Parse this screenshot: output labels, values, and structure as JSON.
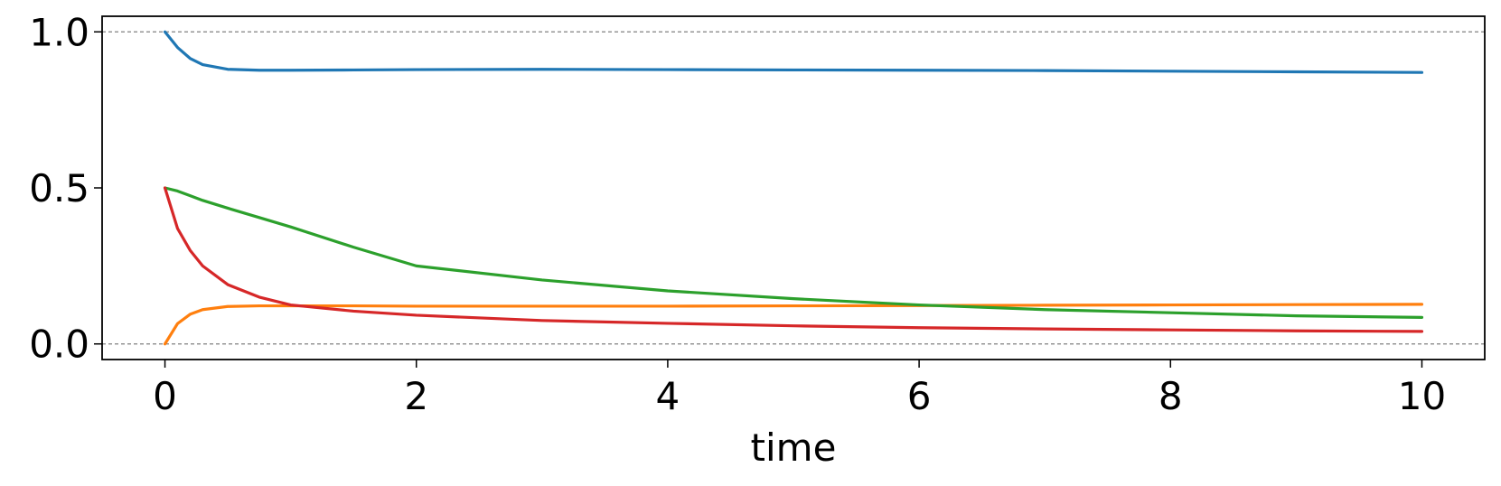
{
  "chart_data": {
    "type": "line",
    "xlabel": "time",
    "x": [
      0,
      0.1,
      0.2,
      0.3,
      0.5,
      0.75,
      1,
      1.5,
      2,
      3,
      4,
      5,
      6,
      7,
      8,
      9,
      10
    ],
    "series": [
      {
        "color": "#1f77b4",
        "values": [
          1,
          0.95,
          0.915,
          0.895,
          0.88,
          0.877,
          0.877,
          0.878,
          0.879,
          0.88,
          0.879,
          0.878,
          0.877,
          0.876,
          0.874,
          0.872,
          0.87
        ]
      },
      {
        "color": "#ff7f0e",
        "values": [
          0,
          0.065,
          0.095,
          0.11,
          0.12,
          0.122,
          0.122,
          0.122,
          0.121,
          0.121,
          0.121,
          0.122,
          0.123,
          0.124,
          0.125,
          0.126,
          0.127
        ]
      },
      {
        "color": "#2ca02c",
        "values": [
          0.5,
          0.49,
          0.475,
          0.46,
          0.435,
          0.405,
          0.375,
          0.31,
          0.25,
          0.205,
          0.17,
          0.145,
          0.125,
          0.11,
          0.1,
          0.09,
          0.085
        ]
      },
      {
        "color": "#d62728",
        "values": [
          0.5,
          0.37,
          0.3,
          0.25,
          0.19,
          0.15,
          0.125,
          0.105,
          0.092,
          0.075,
          0.066,
          0.058,
          0.052,
          0.048,
          0.045,
          0.042,
          0.04
        ]
      }
    ],
    "hlines": [
      0,
      1
    ],
    "xlim": [
      -0.5,
      10.5
    ],
    "ylim": [
      -0.05,
      1.05
    ],
    "xticks": [
      0,
      2,
      4,
      6,
      8,
      10
    ],
    "yticks": [
      {
        "value": 0,
        "label": "0.0"
      },
      {
        "value": 0.5,
        "label": "0.5"
      },
      {
        "value": 1,
        "label": "1.0"
      }
    ]
  }
}
